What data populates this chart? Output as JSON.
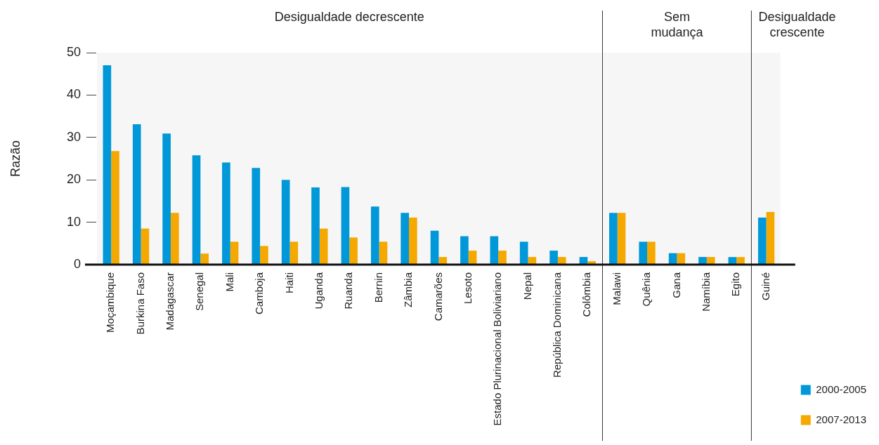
{
  "chart_data": {
    "type": "bar",
    "ylabel": "Razão",
    "categories": [
      "Moçambique",
      "Burkina Faso",
      "Madagascar",
      "Senegal",
      "Mali",
      "Camboja",
      "Haiti",
      "Uganda",
      "Ruanda",
      "Bernin",
      "Zâmbia",
      "Camarões",
      "Lesoto",
      "Estado Plurinacional Boliviariano",
      "Nepal",
      "República Dominicana",
      "Colômbia",
      "Malawi",
      "Quênia",
      "Gana",
      "Namíbia",
      "Egito",
      "Guiné"
    ],
    "series": [
      {
        "name": "2000-2005",
        "color": "#0098d8",
        "values": [
          47,
          33.1,
          30.9,
          25.8,
          24.1,
          22.8,
          20,
          18.2,
          18.3,
          13.7,
          12.2,
          8,
          6.7,
          6.7,
          5.4,
          3.3,
          1.8,
          12.2,
          5.4,
          2.7,
          1.8,
          1.8,
          11.1
        ]
      },
      {
        "name": "2007-2013",
        "color": "#f5a800",
        "values": [
          26.8,
          8.5,
          12.2,
          2.6,
          5.4,
          4.4,
          5.4,
          8.5,
          6.4,
          5.4,
          11.1,
          1.8,
          3.3,
          3.3,
          1.8,
          1.8,
          0.8,
          12.2,
          5.4,
          2.7,
          1.8,
          1.8,
          12.4
        ]
      }
    ],
    "ylim": [
      0,
      50
    ],
    "yticks": [
      0,
      10,
      20,
      30,
      40,
      50
    ],
    "grid": false,
    "legend": "bottom right",
    "bands": [
      {
        "axis": "x",
        "from": "Moçambique",
        "to": "Colômbia",
        "label": "Desigualdade decrescente",
        "color": "#f6f6f6"
      },
      {
        "axis": "x",
        "from": "Malawi",
        "to": "Egito",
        "label": "Sem mudança",
        "color": "#f6f6f6"
      },
      {
        "axis": "x",
        "from": "Guiné",
        "to": "Guiné",
        "label": "Desigualdade crescente",
        "color": "#f6f6f6"
      }
    ]
  }
}
